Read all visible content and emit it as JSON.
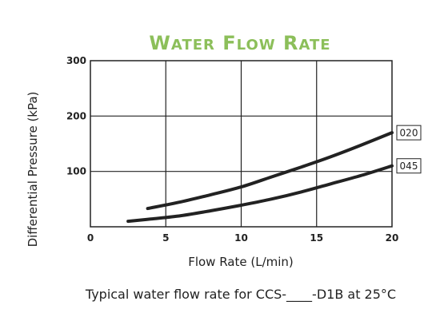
{
  "chart_data": {
    "type": "line",
    "title": "Water Flow Rate",
    "xlabel": "Flow Rate (L/min)",
    "ylabel": "Differential Pressure (kPa)",
    "caption": "Typical water flow rate for CCS-____-D1B at 25°C",
    "xlim": [
      0,
      20
    ],
    "ylim": [
      0,
      300
    ],
    "x_ticks": [
      "0",
      "5",
      "10",
      "15",
      "20"
    ],
    "y_ticks": [
      "100",
      "200",
      "300"
    ],
    "grid": true,
    "series": [
      {
        "name": "020",
        "x": [
          3.8,
          6,
          8,
          10,
          12,
          14,
          16,
          18,
          20
        ],
        "y": [
          33,
          45,
          58,
          72,
          90,
          108,
          127,
          148,
          170
        ]
      },
      {
        "name": "045",
        "x": [
          2.5,
          4,
          6,
          8,
          10,
          12,
          14,
          16,
          18,
          20
        ],
        "y": [
          10,
          14,
          20,
          29,
          39,
          50,
          63,
          78,
          93,
          110
        ]
      }
    ],
    "colors": {
      "title": "#8cbf5a",
      "line": "#222222"
    }
  }
}
